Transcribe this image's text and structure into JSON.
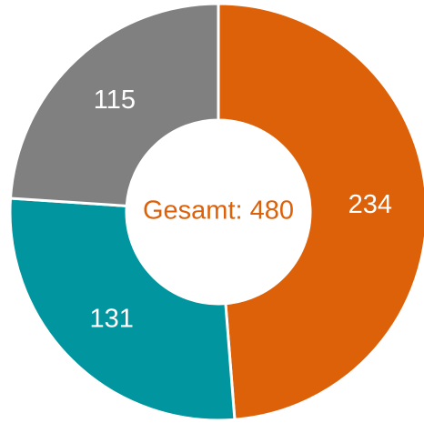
{
  "chart_data": {
    "type": "donut",
    "values": [
      234,
      131,
      115
    ],
    "colors": [
      "#dd6109",
      "#00959f",
      "#808080"
    ],
    "center_label": "Gesamt: 480",
    "center_label_color": "#dd6109",
    "value_label_color": "#ffffff"
  }
}
